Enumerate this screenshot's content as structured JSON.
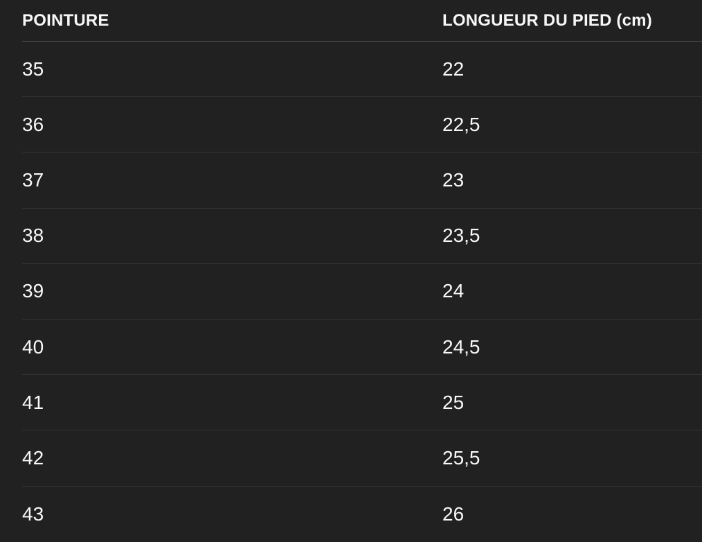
{
  "table": {
    "columns": [
      {
        "label": "POINTURE"
      },
      {
        "label": "LONGUEUR DU PIED (cm)"
      }
    ],
    "rows": [
      {
        "pointure": "35",
        "longueur": "22"
      },
      {
        "pointure": "36",
        "longueur": "22,5"
      },
      {
        "pointure": "37",
        "longueur": "23"
      },
      {
        "pointure": "38",
        "longueur": "23,5"
      },
      {
        "pointure": "39",
        "longueur": "24"
      },
      {
        "pointure": "40",
        "longueur": "24,5"
      },
      {
        "pointure": "41",
        "longueur": "25"
      },
      {
        "pointure": "42",
        "longueur": "25,5"
      },
      {
        "pointure": "43",
        "longueur": "26"
      }
    ]
  },
  "colors": {
    "background": "#212121",
    "text": "#f7f7f7",
    "header_divider": "#515151",
    "row_divider": "#343434"
  }
}
